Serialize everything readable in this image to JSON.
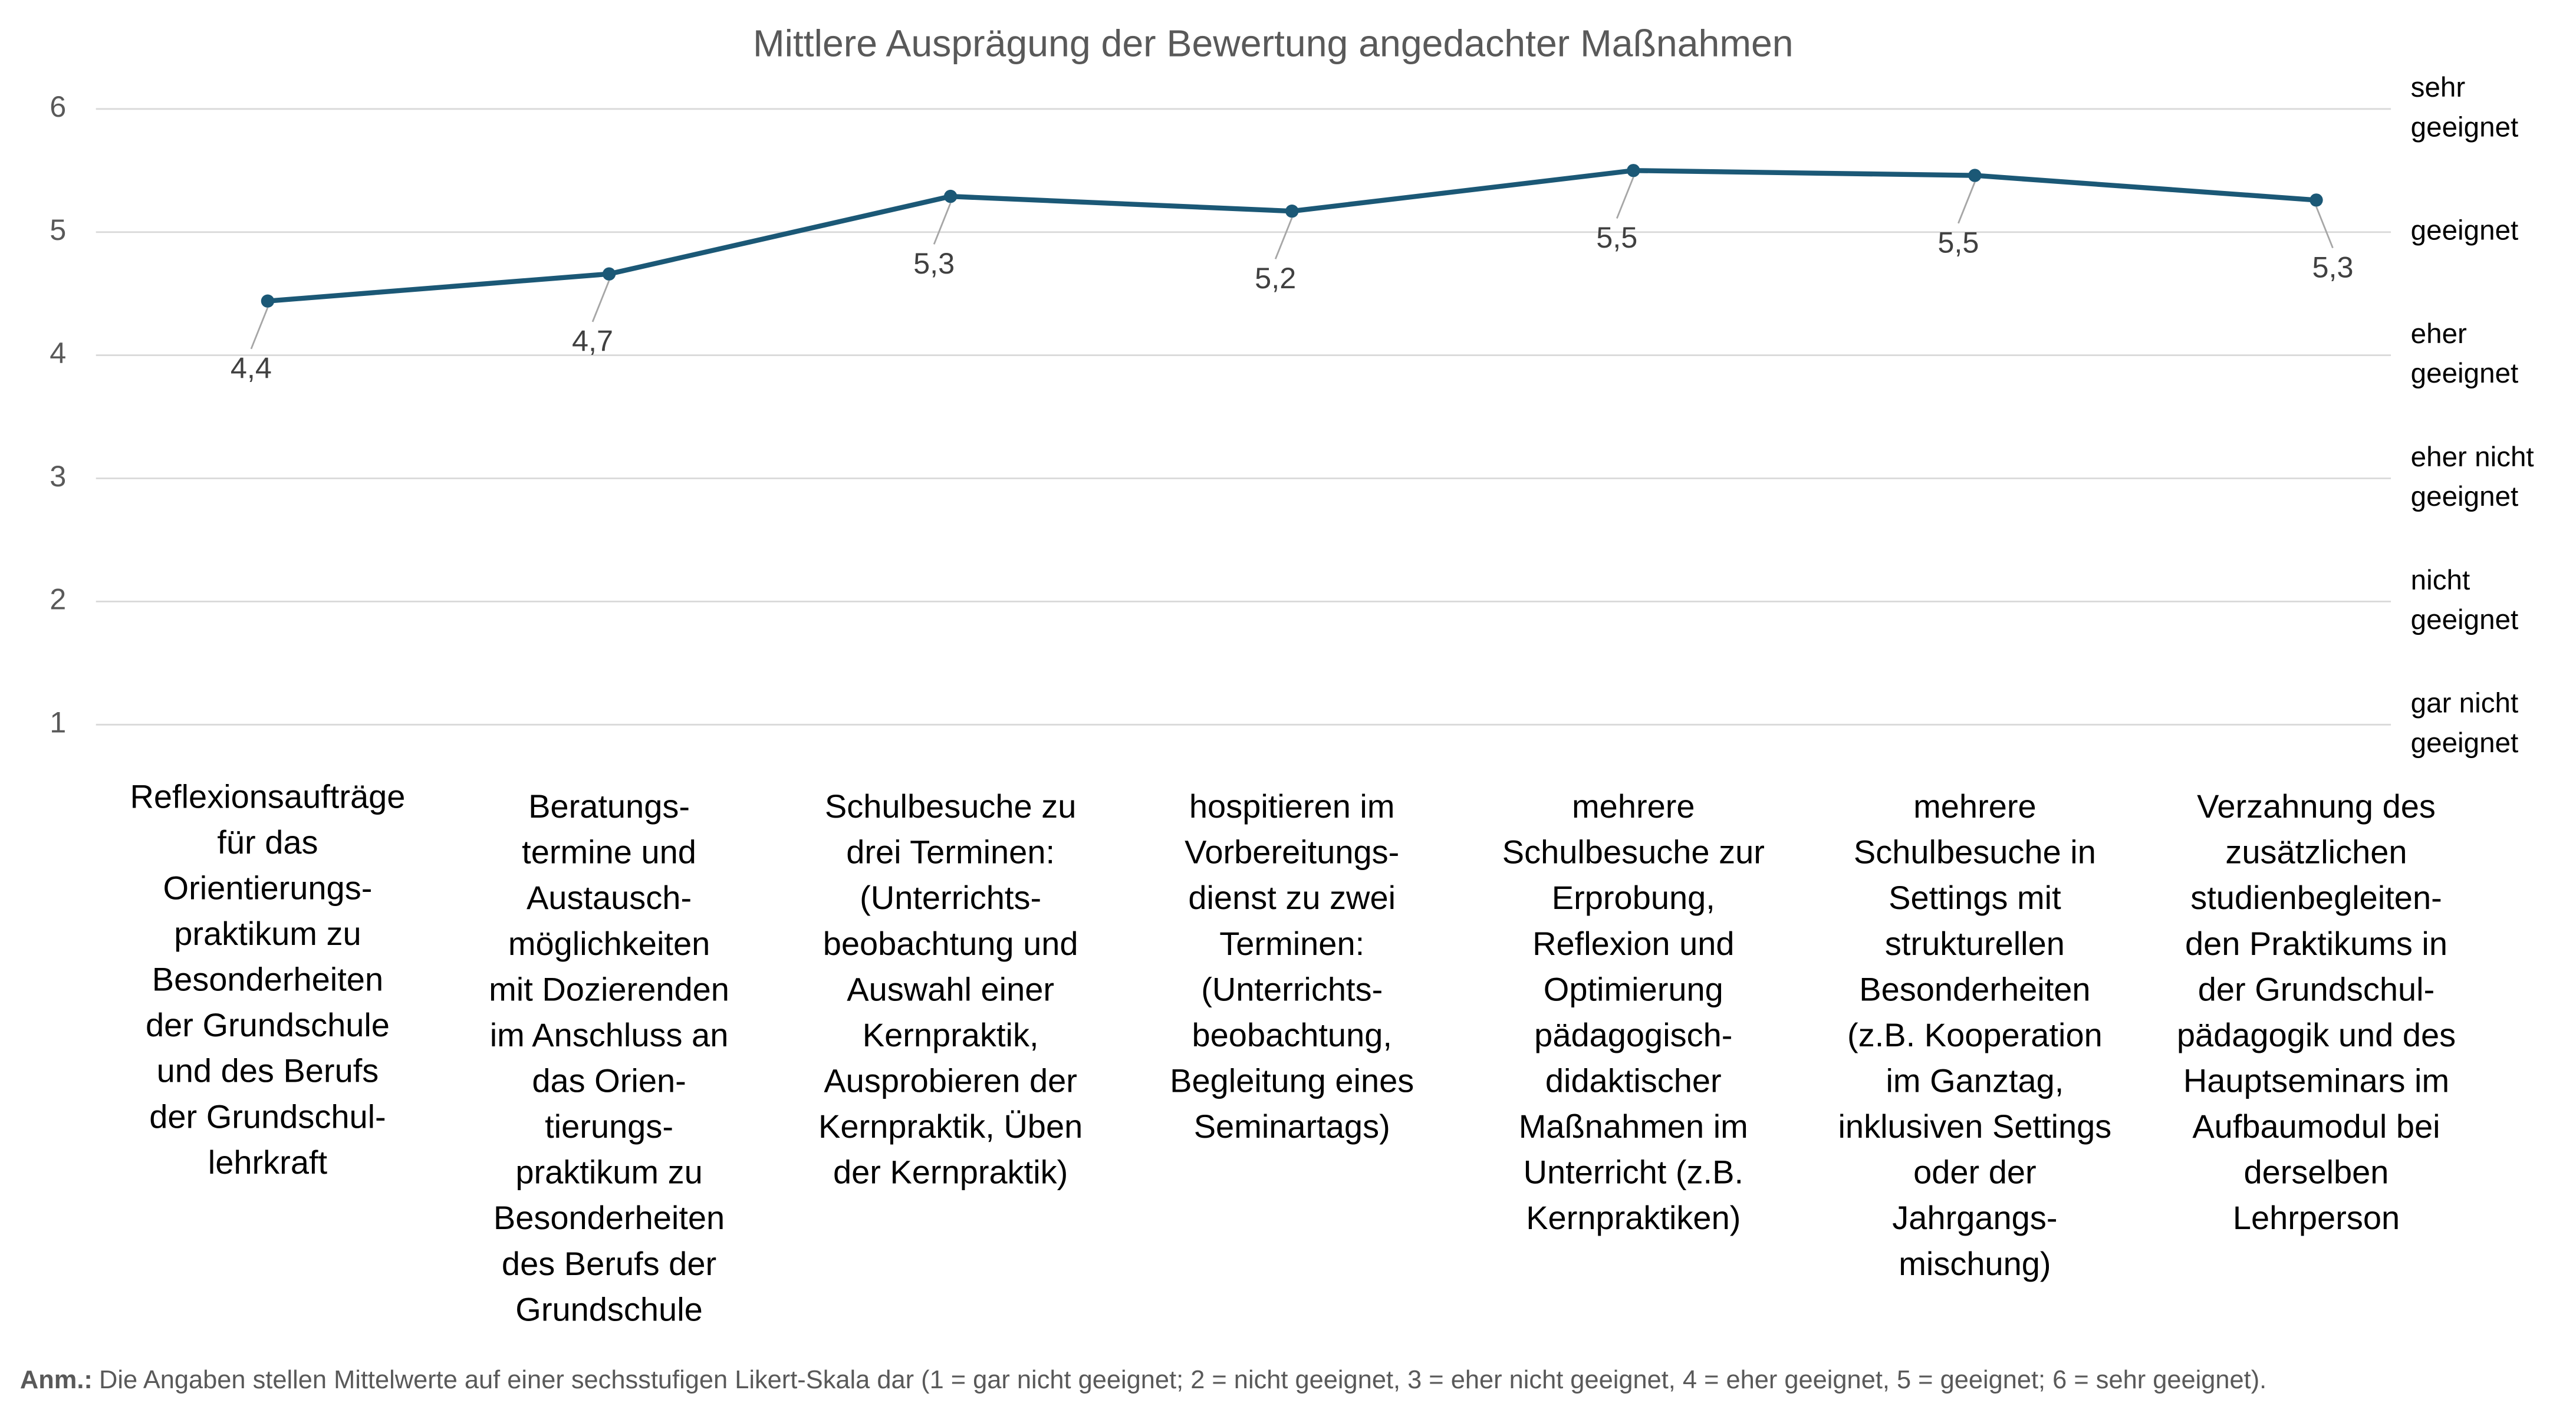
{
  "chart_data": {
    "type": "line",
    "title": "Mittlere Ausprägung der Bewertung angedachter Maßnahmen",
    "categories": [
      "Reflexionsaufträge\nfür das\nOrientierungs-\npraktikum zu\nBesonderheiten\nder Grundschule\nund des Berufs\nder Grundschul-\nlehrkraft",
      "Beratungs-\ntermine und\nAustausch-\nmöglichkeiten\nmit Dozierenden\nim Anschluss an\ndas Orien-\ntierungs-\npraktikum zu\nBesonderheiten\ndes Berufs der\nGrundschule",
      "Schulbesuche zu\ndrei Terminen:\n(Unterrichts-\nbeobachtung und\nAuswahl einer\nKernpraktik,\nAusprobieren der\nKernpraktik, Üben\nder Kernpraktik)",
      "hospitieren im\nVorbereitungs-\ndienst zu zwei\nTerminen:\n(Unterrichts-\nbeobachtung,\nBegleitung eines\nSeminartags)",
      "mehrere\nSchulbesuche zur\nErprobung,\nReflexion und\nOptimierung\npädagogisch-\ndidaktischer\nMaßnahmen im\nUnterricht (z.B.\nKernpraktiken)",
      "mehrere\nSchulbesuche in\nSettings mit\nstrukturellen\nBesonderheiten\n(z.B. Kooperation\nim Ganztag,\ninklusiven Settings\noder der\nJahrgangs-\nmischung)",
      "Verzahnung des\nzusätzlichen\nstudienbegleiten-\nden Praktikums in\nder Grundschul-\npädagogik und des\nHauptseminars im\nAufbaumodul bei\nderselben\nLehrperson"
    ],
    "series": [
      {
        "color": "#1b5876",
        "values": [
          4.44,
          4.66,
          5.29,
          5.17,
          5.5,
          5.46,
          5.26
        ],
        "value_labels": [
          "4,4",
          "4,7",
          "5,3",
          "5,2",
          "5,5",
          "5,5",
          "5,3"
        ]
      }
    ],
    "ylim": [
      1,
      6
    ],
    "yticks": [
      1,
      2,
      3,
      4,
      5,
      6
    ],
    "y2lim": [
      1,
      6
    ],
    "y2ticks": [
      {
        "value": 6,
        "label": "sehr geeignet"
      },
      {
        "value": 5,
        "label": "geeignet"
      },
      {
        "value": 4,
        "label": "eher geeignet"
      },
      {
        "value": 3,
        "label": "eher nicht geeignet"
      },
      {
        "value": 2,
        "label": "nicht geeignet"
      },
      {
        "value": 1,
        "label": "gar nicht geeignet"
      }
    ],
    "grid": true,
    "note": {
      "label": "Anm.:",
      "text": "Die Angaben stellen Mittelwerte auf einer sechsstufigen Likert-Skala dar (1 = gar nicht geeignet; 2 = nicht geeignet, 3 = eher nicht geeignet, 4 = eher geeignet, 5 = geeignet; 6 = sehr geeignet)."
    }
  }
}
